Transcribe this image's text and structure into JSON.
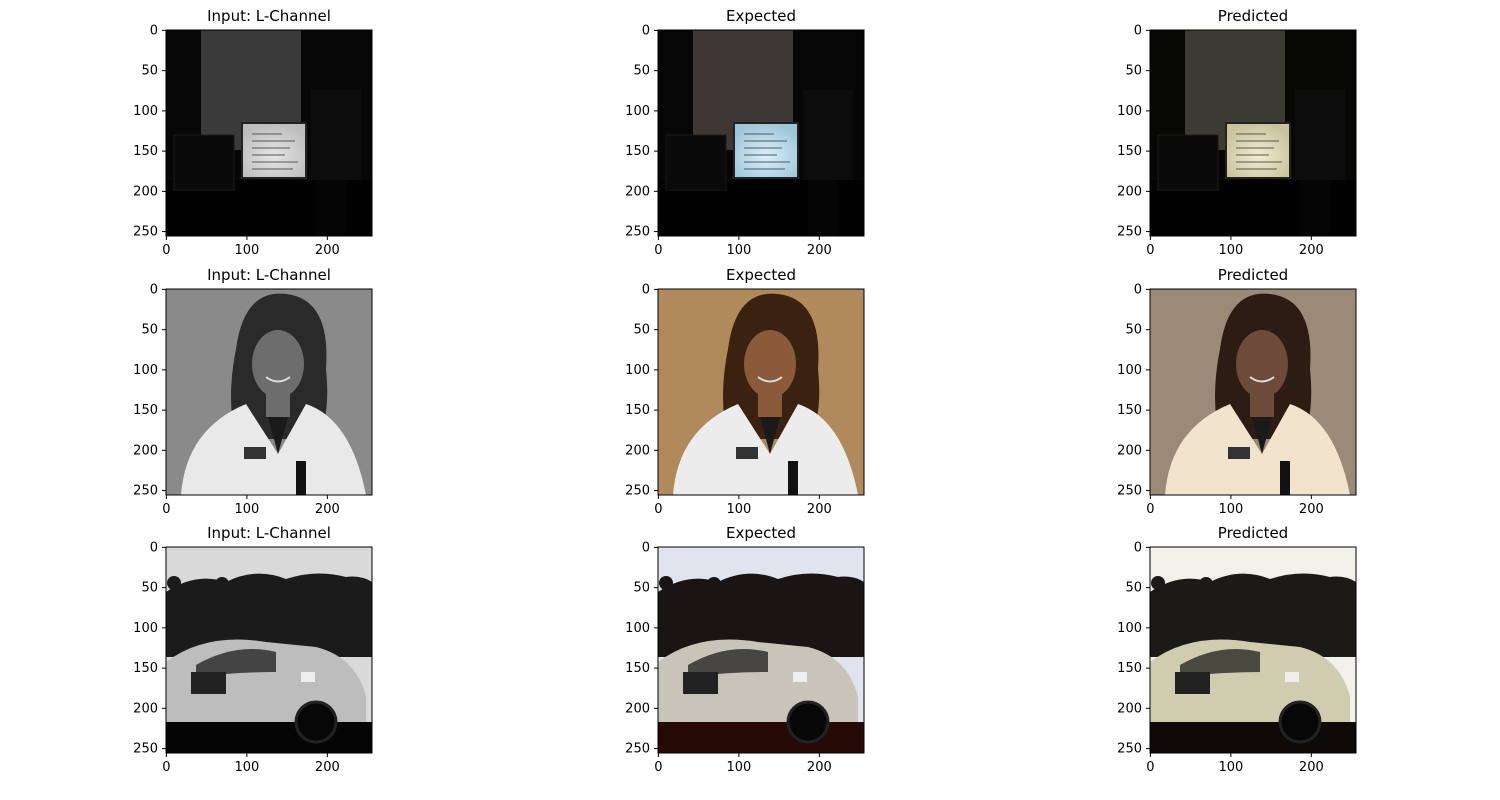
{
  "figure": {
    "rows": [
      {
        "scene": "office-monitor",
        "panels": [
          {
            "title": "Input: L-Channel",
            "variant": "input"
          },
          {
            "title": "Expected",
            "variant": "expected"
          },
          {
            "title": "Predicted",
            "variant": "predicted"
          }
        ]
      },
      {
        "scene": "woman-portrait",
        "panels": [
          {
            "title": "Input: L-Channel",
            "variant": "input"
          },
          {
            "title": "Expected",
            "variant": "expected"
          },
          {
            "title": "Predicted",
            "variant": "predicted"
          }
        ]
      },
      {
        "scene": "race-car-crowd",
        "panels": [
          {
            "title": "Input: L-Channel",
            "variant": "input"
          },
          {
            "title": "Expected",
            "variant": "expected"
          },
          {
            "title": "Predicted",
            "variant": "predicted"
          }
        ]
      }
    ],
    "axes": {
      "x_ticks": [
        "0",
        "100",
        "200"
      ],
      "y_ticks": [
        "0",
        "50",
        "100",
        "150",
        "200",
        "250"
      ]
    },
    "palette": {
      "office-monitor": {
        "input": {
          "bg": "#070707",
          "wall": "#3a3a3a",
          "screen": "#e6e6e6",
          "glow": "#bdbdbd"
        },
        "expected": {
          "bg": "#060606",
          "wall": "#3d3834",
          "screen": "#d9f0ff",
          "glow": "#9fc6d8"
        },
        "predicted": {
          "bg": "#070706",
          "wall": "#3c3b33",
          "screen": "#f2ecd2",
          "glow": "#c9c29d"
        }
      },
      "woman-portrait": {
        "input": {
          "bg": "#8a8a8a",
          "hair": "#2a2a2a",
          "skin": "#6d6d6d",
          "coat": "#e9e9e9"
        },
        "expected": {
          "bg": "#b08a5c",
          "hair": "#3b2210",
          "skin": "#8a5a3a",
          "coat": "#ececec"
        },
        "predicted": {
          "bg": "#9c8a78",
          "hair": "#2c1c14",
          "skin": "#6e4a3a",
          "coat": "#f2e3cc"
        }
      },
      "race-car-crowd": {
        "input": {
          "sky": "#d9d9d9",
          "crowd": "#1b1b1b",
          "car": "#bdbdbd",
          "ground": "#050505"
        },
        "expected": {
          "sky": "#dfe4ef",
          "crowd": "#1a1514",
          "car": "#c9c4b9",
          "ground": "#240905"
        },
        "predicted": {
          "sky": "#f1f1ea",
          "crowd": "#1c1a16",
          "car": "#d0ccb0",
          "ground": "#0d0a07"
        }
      }
    }
  }
}
